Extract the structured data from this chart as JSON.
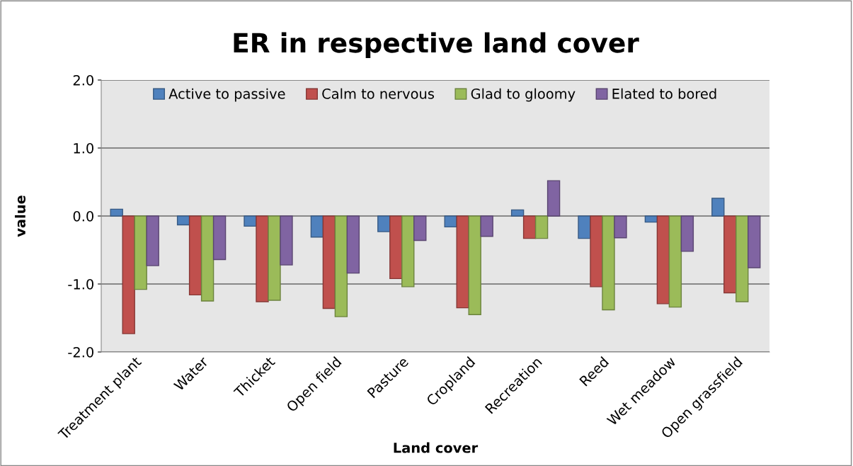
{
  "chart_data": {
    "type": "bar",
    "title": "ER in respective land cover",
    "xlabel": "Land cover",
    "ylabel": "value",
    "categories": [
      "Treatment plant",
      "Water",
      "Thicket",
      "Open field",
      "Pasture",
      "Cropland",
      "Recreation",
      "Reed",
      "Wet meadow",
      "Open grassfield"
    ],
    "series": [
      {
        "name": "Active to passive",
        "color": "#4f81bd",
        "values": [
          0.1,
          -0.13,
          -0.15,
          -0.31,
          -0.23,
          -0.16,
          0.09,
          -0.33,
          -0.09,
          0.26
        ]
      },
      {
        "name": "Calm to nervous",
        "color": "#c0504d",
        "values": [
          -1.73,
          -1.16,
          -1.26,
          -1.36,
          -0.92,
          -1.35,
          -0.33,
          -1.04,
          -1.29,
          -1.13
        ]
      },
      {
        "name": "Glad to gloomy",
        "color": "#9bbb59",
        "values": [
          -1.08,
          -1.25,
          -1.24,
          -1.48,
          -1.04,
          -1.45,
          -0.33,
          -1.38,
          -1.34,
          -1.26
        ]
      },
      {
        "name": "Elated to bored",
        "color": "#8064a2",
        "values": [
          -0.73,
          -0.64,
          -0.72,
          -0.84,
          -0.36,
          -0.3,
          0.52,
          -0.32,
          -0.52,
          -0.76
        ]
      }
    ],
    "ylim": [
      -2.0,
      2.0
    ],
    "yticks": [
      {
        "value": -2,
        "label": "-2.0"
      },
      {
        "value": -1,
        "label": "-1.0"
      },
      {
        "value": 0,
        "label": "0.0"
      },
      {
        "value": 1,
        "label": "1.0"
      },
      {
        "value": 2,
        "label": "2.0"
      }
    ],
    "grid": "y",
    "legend": "top"
  }
}
